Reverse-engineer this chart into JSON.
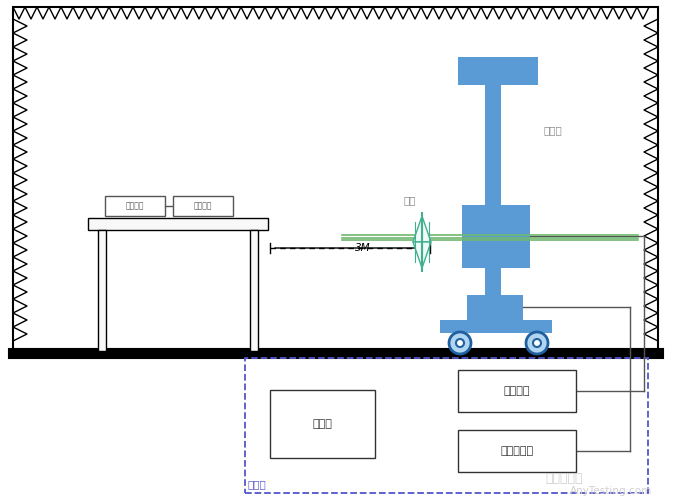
{
  "bg_color": "#ffffff",
  "room_border": "#000000",
  "blue_fill": "#5b9bd5",
  "green_line": "#70b870",
  "teal_color": "#40b090",
  "dashed_box_color": "#5555cc",
  "label_antenna": "天线",
  "label_tower": "天线塔",
  "label_aux": "辅助设备",
  "label_detect": "被测设备",
  "label_3m": "3M",
  "label_computer": "计算机",
  "label_ctrl_sys": "控制系统",
  "label_measure": "测量接收机",
  "label_ctrl_room": "控制室",
  "watermark1": "嘉峨检测网",
  "watermark2": "AnyTesting.com"
}
